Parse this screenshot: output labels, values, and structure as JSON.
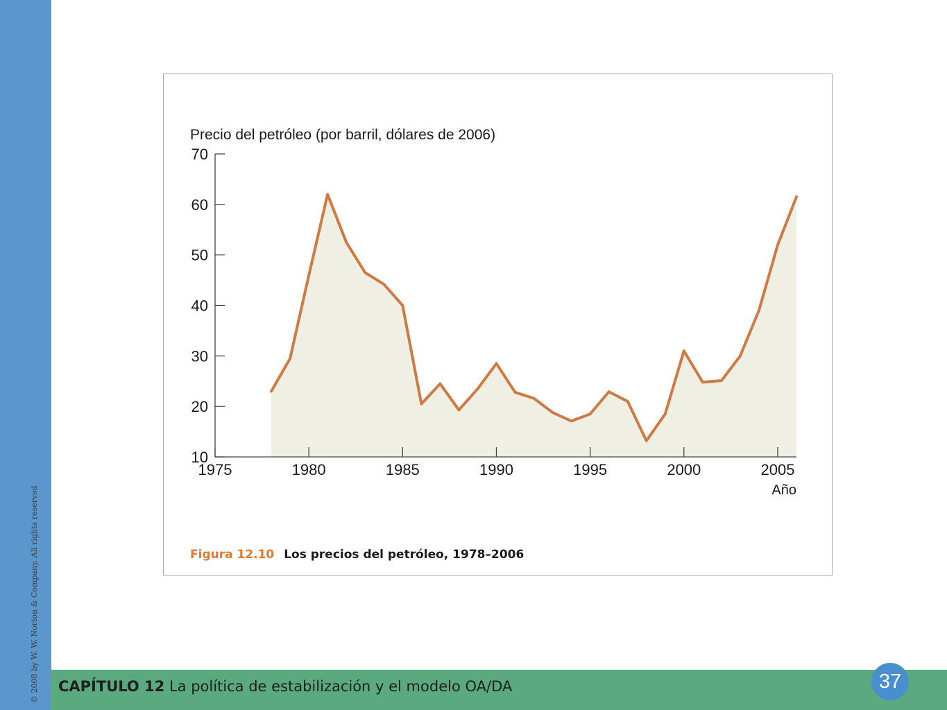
{
  "sidebar": {
    "copyright": "© 2008 by W. W. Norton & Company. All rights reserved"
  },
  "footer": {
    "chapter_label": "CAPÍTULO 12",
    "chapter_title": "La política de estabilización y el modelo OA/DA",
    "page_number": "37"
  },
  "figure": {
    "number": "Figura 12.10",
    "title": "Los precios del petróleo, 1978–2006"
  },
  "colors": {
    "sidebar": "#5b97cc",
    "footer": "#5aa97f",
    "page_badge": "#4a8fcd",
    "line": "#cd7a45",
    "area_fill": "#efefe3",
    "caption_number": "#e07b2a"
  },
  "chart_data": {
    "type": "area",
    "title": "Precio del petróleo (por barril, dólares de 2006)",
    "xlabel": "Año",
    "ylabel": "",
    "xlim": [
      1975,
      2006
    ],
    "ylim": [
      10,
      70
    ],
    "x_ticks": [
      1975,
      1980,
      1985,
      1990,
      1995,
      2000,
      2005
    ],
    "y_ticks": [
      10,
      20,
      30,
      40,
      50,
      60,
      70
    ],
    "grid": false,
    "x": [
      1978,
      1979,
      1980,
      1981,
      1982,
      1983,
      1984,
      1985,
      1986,
      1987,
      1988,
      1989,
      1990,
      1991,
      1992,
      1993,
      1994,
      1995,
      1996,
      1997,
      1998,
      1999,
      2000,
      2001,
      2002,
      2003,
      2004,
      2005,
      2006
    ],
    "series": [
      {
        "values": [
          23,
          29.5,
          46,
          62,
          52.5,
          46.5,
          44.2,
          40,
          20.5,
          24.5,
          19.3,
          23.5,
          28.5,
          22.8,
          21.6,
          18.8,
          17.1,
          18.5,
          22.9,
          21,
          13.2,
          18.5,
          31,
          24.8,
          25.1,
          30,
          39,
          52,
          61.5
        ]
      }
    ]
  }
}
